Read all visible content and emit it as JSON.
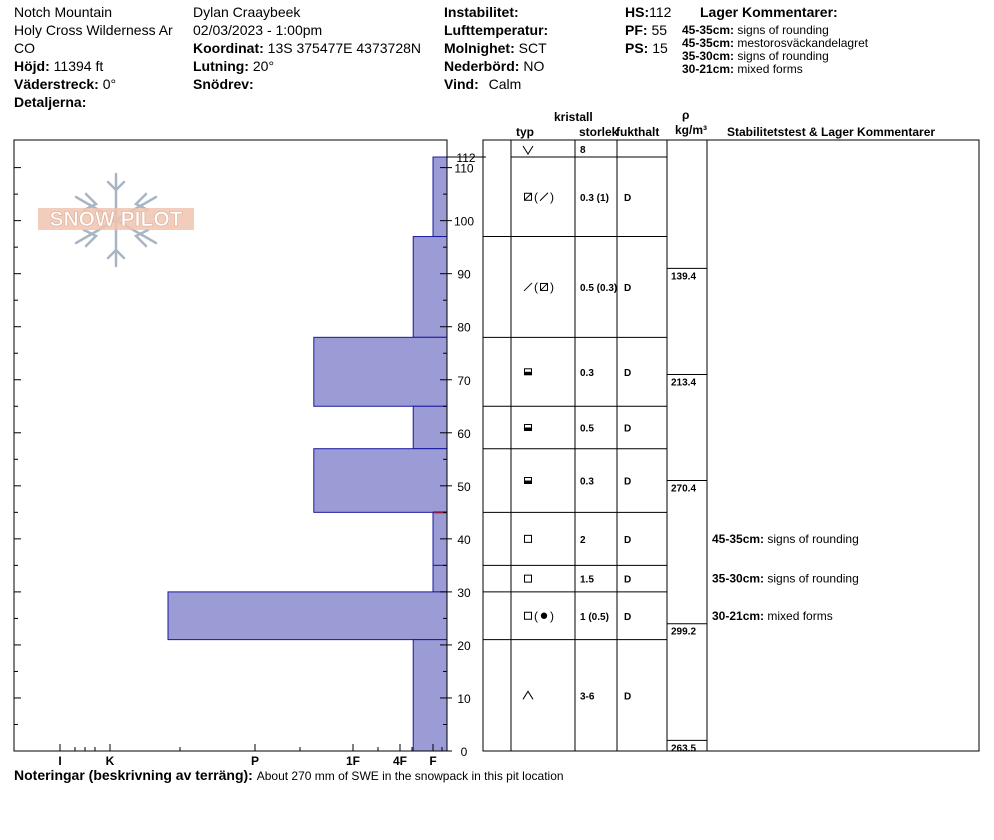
{
  "header": {
    "location": "Notch Mountain",
    "area_line1": "Holy Cross Wilderness Ar",
    "area_line2": "CO",
    "elevation_label": "Höjd:",
    "elevation_value": "11394 ft",
    "aspect_label": "Väderstreck:",
    "aspect_value": "0°",
    "details_label": "Detaljerna:",
    "observer": "Dylan Craaybeek",
    "datetime": "02/03/2023 - 1:00pm",
    "coord_label": "Koordinat:",
    "coord_value": "13S 375477E 4373728N",
    "slope_label": "Lutning:",
    "slope_value": "20°",
    "drift_label": "Snödrev:",
    "drift_value": "",
    "instability_label": "Instabilitet:",
    "instability_value": "",
    "airtemp_label": "Lufttemperatur:",
    "airtemp_value": "",
    "sky_label": "Molnighet:",
    "sky_value": "SCT",
    "precip_label": "Nederbörd:",
    "precip_value": "NO",
    "wind_label": "Vind:",
    "wind_value": "Calm",
    "hs_label": "HS:",
    "hs_value": "112",
    "pf_label": "PF:",
    "pf_value": "55",
    "ps_label": "PS:",
    "ps_value": "15",
    "layer_comments_title": "Lager Kommentarer:",
    "layer_comments": [
      {
        "range": "45-35cm:",
        "text": "signs of rounding"
      },
      {
        "range": "45-35cm:",
        "text": "mestorosväckandelagret"
      },
      {
        "range": "35-30cm:",
        "text": "signs of rounding"
      },
      {
        "range": "30-21cm:",
        "text": "mixed forms"
      }
    ]
  },
  "logo_text": "SNOW PILOT",
  "columns": {
    "crystal": "kristall",
    "type": "typ",
    "size": "storlek",
    "moisture": "fukthalt",
    "rho": "ρ",
    "density_unit": "kg/m³",
    "stability": "Stabilitetstest & Lager Kommentarer"
  },
  "notes_label": "Noteringar (beskrivning av terräng):",
  "notes_text": "About 270 mm of SWE in the snowpack in this pit location",
  "colors": {
    "layer_fill": "#9b9bd6",
    "layer_stroke": "#1a1aa0",
    "weak_layer": "#8b1a3a"
  },
  "chart_data": {
    "type": "snow_profile",
    "ylim": [
      0,
      112
    ],
    "y_ticks": [
      0,
      10,
      20,
      30,
      40,
      50,
      60,
      70,
      80,
      90,
      100,
      110
    ],
    "hs_tick": "112",
    "hardness_ticks": [
      {
        "label": "I",
        "value": 6
      },
      {
        "label": "K",
        "value": 5
      },
      {
        "label": "P",
        "value": 4
      },
      {
        "label": "1F",
        "value": 3
      },
      {
        "label": "4F",
        "value": 2
      },
      {
        "label": "F",
        "value": 1
      }
    ],
    "layers": [
      {
        "top": 112,
        "bottom": 97,
        "hardness": 1.0,
        "grain": "facet-rounding",
        "grain_text": "(",
        "size": "0.3 (1)",
        "moisture": "D"
      },
      {
        "top": 97,
        "bottom": 78,
        "hardness": 1.6,
        "grain": "rounding-facet",
        "grain_text": "(",
        "size": "0.5 (0.3)",
        "moisture": "D"
      },
      {
        "top": 78,
        "bottom": 65,
        "hardness": 3.4,
        "grain": "melt-freeze",
        "grain_text": "",
        "size": "0.3",
        "moisture": "D"
      },
      {
        "top": 65,
        "bottom": 57,
        "hardness": 1.6,
        "grain": "melt-freeze",
        "grain_text": "",
        "size": "0.5",
        "moisture": "D"
      },
      {
        "top": 57,
        "bottom": 45,
        "hardness": 3.4,
        "grain": "melt-freeze",
        "grain_text": "",
        "size": "0.3",
        "moisture": "D"
      },
      {
        "top": 45,
        "bottom": 35,
        "hardness": 1.0,
        "grain": "facet",
        "grain_text": "",
        "size": "2",
        "moisture": "D"
      },
      {
        "top": 35,
        "bottom": 30,
        "hardness": 1.0,
        "grain": "facet",
        "grain_text": "",
        "size": "1.5",
        "moisture": "D"
      },
      {
        "top": 30,
        "bottom": 21,
        "hardness": 4.6,
        "grain": "facet-round",
        "grain_text": "(",
        "size": "1 (0.5)",
        "moisture": "D"
      },
      {
        "top": 21,
        "bottom": 0,
        "hardness": 1.6,
        "grain": "depth-hoar",
        "grain_text": "",
        "size": "3-6",
        "moisture": "D"
      }
    ],
    "surface": {
      "grain": "surface-hoar",
      "size": "8"
    },
    "weak_layer": 45,
    "density": [
      {
        "depth": 91,
        "value": "139.4"
      },
      {
        "depth": 71,
        "value": "213.4"
      },
      {
        "depth": 51,
        "value": "270.4"
      },
      {
        "depth": 24,
        "value": "299.2"
      },
      {
        "depth": 2,
        "value": "263.5"
      }
    ],
    "stability_comments": [
      {
        "depth": 40,
        "range": "45-35cm:",
        "text": "signs of rounding"
      },
      {
        "depth": 32.5,
        "range": "35-30cm:",
        "text": "signs of rounding"
      },
      {
        "depth": 25.5,
        "range": "30-21cm:",
        "text": "mixed forms"
      }
    ]
  }
}
